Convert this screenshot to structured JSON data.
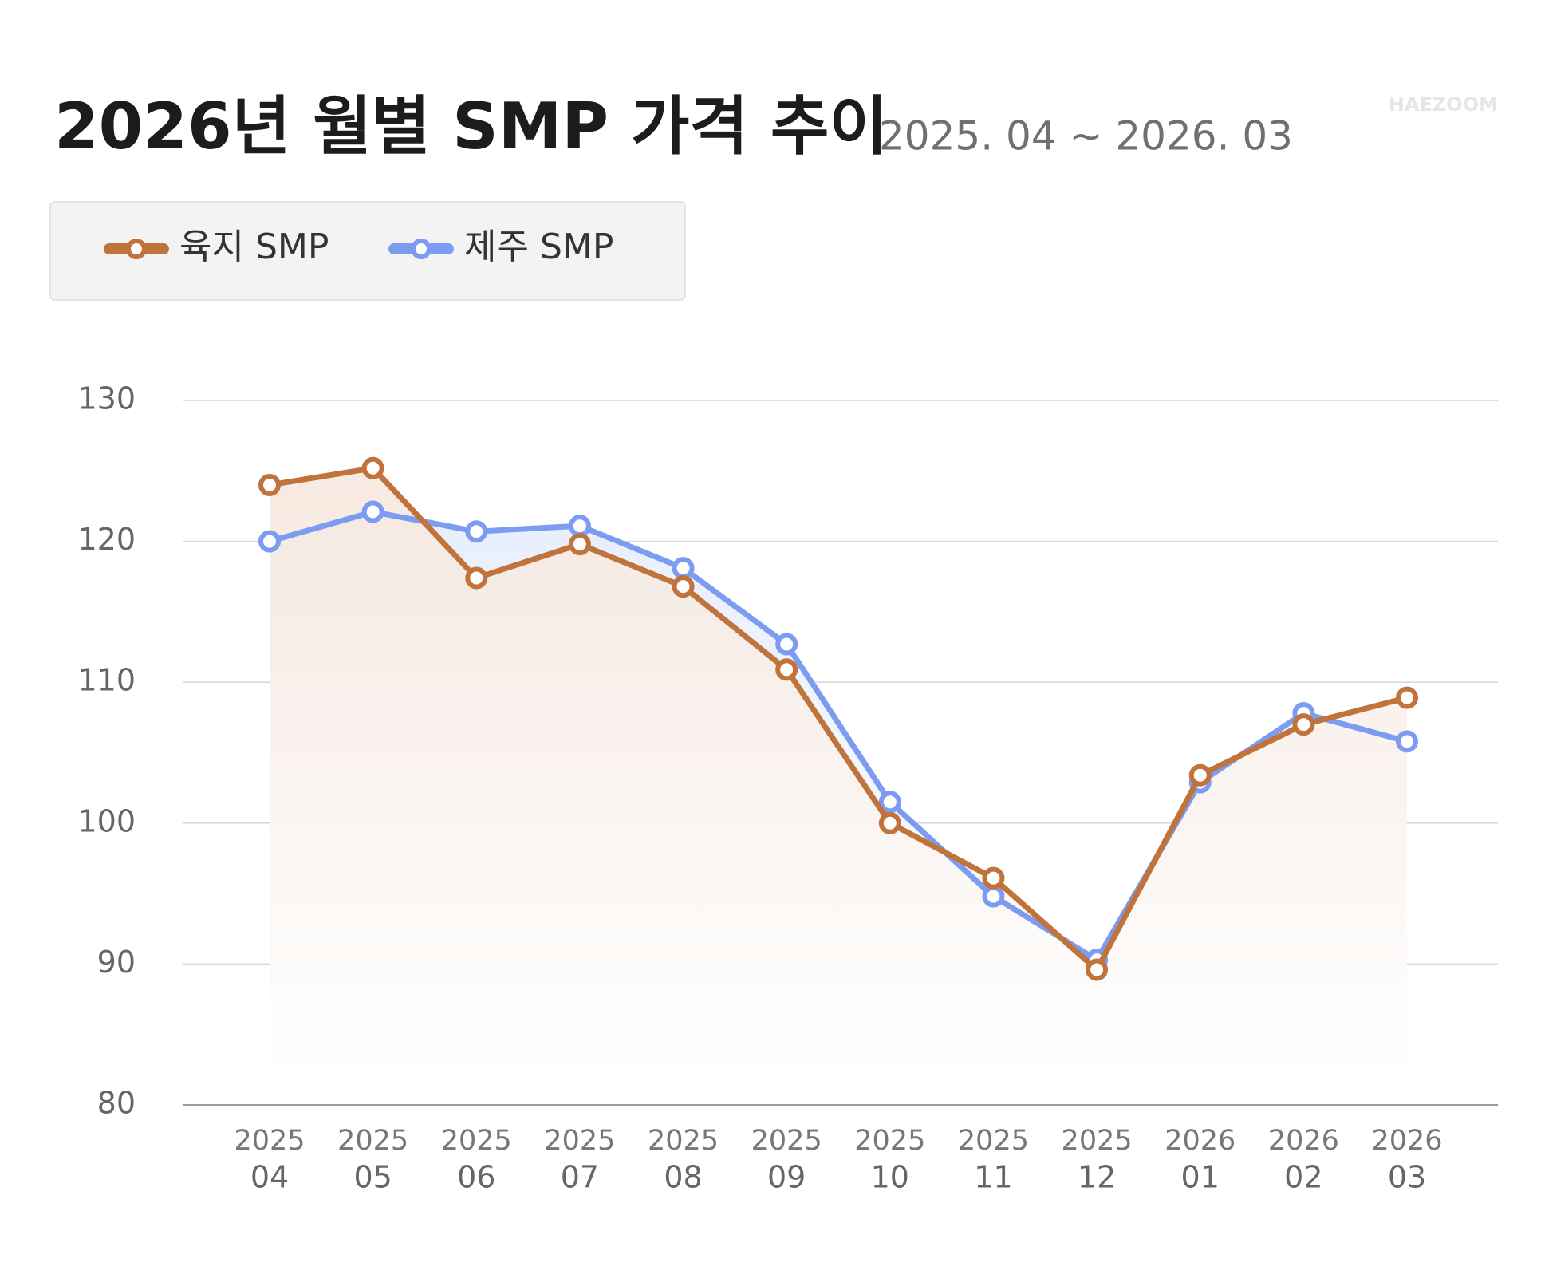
{
  "chart_data": {
    "type": "line",
    "title": "2026년 월별 SMP 가격 추이",
    "subtitle": "2025. 04 ~ 2026. 03",
    "watermark": "HAEZOOM",
    "categories": [
      [
        "2025",
        "04"
      ],
      [
        "2025",
        "05"
      ],
      [
        "2025",
        "06"
      ],
      [
        "2025",
        "07"
      ],
      [
        "2025",
        "08"
      ],
      [
        "2025",
        "09"
      ],
      [
        "2025",
        "10"
      ],
      [
        "2025",
        "11"
      ],
      [
        "2025",
        "12"
      ],
      [
        "2026",
        "01"
      ],
      [
        "2026",
        "02"
      ],
      [
        "2026",
        "03"
      ]
    ],
    "series": [
      {
        "name": "육지 SMP",
        "color": "#c0733a",
        "values": [
          124.0,
          125.2,
          117.4,
          119.8,
          116.8,
          110.9,
          100.0,
          96.1,
          89.6,
          103.4,
          107.0,
          108.9
        ]
      },
      {
        "name": "제주 SMP",
        "color": "#7b9cf0",
        "values": [
          120.0,
          122.1,
          120.7,
          121.1,
          118.1,
          112.7,
          101.5,
          94.8,
          90.3,
          102.9,
          107.8,
          105.8
        ]
      }
    ],
    "ylim": [
      80,
      130
    ],
    "yticks": [
      80,
      90,
      100,
      110,
      120,
      130
    ],
    "grid": true,
    "legend": "top-left"
  }
}
